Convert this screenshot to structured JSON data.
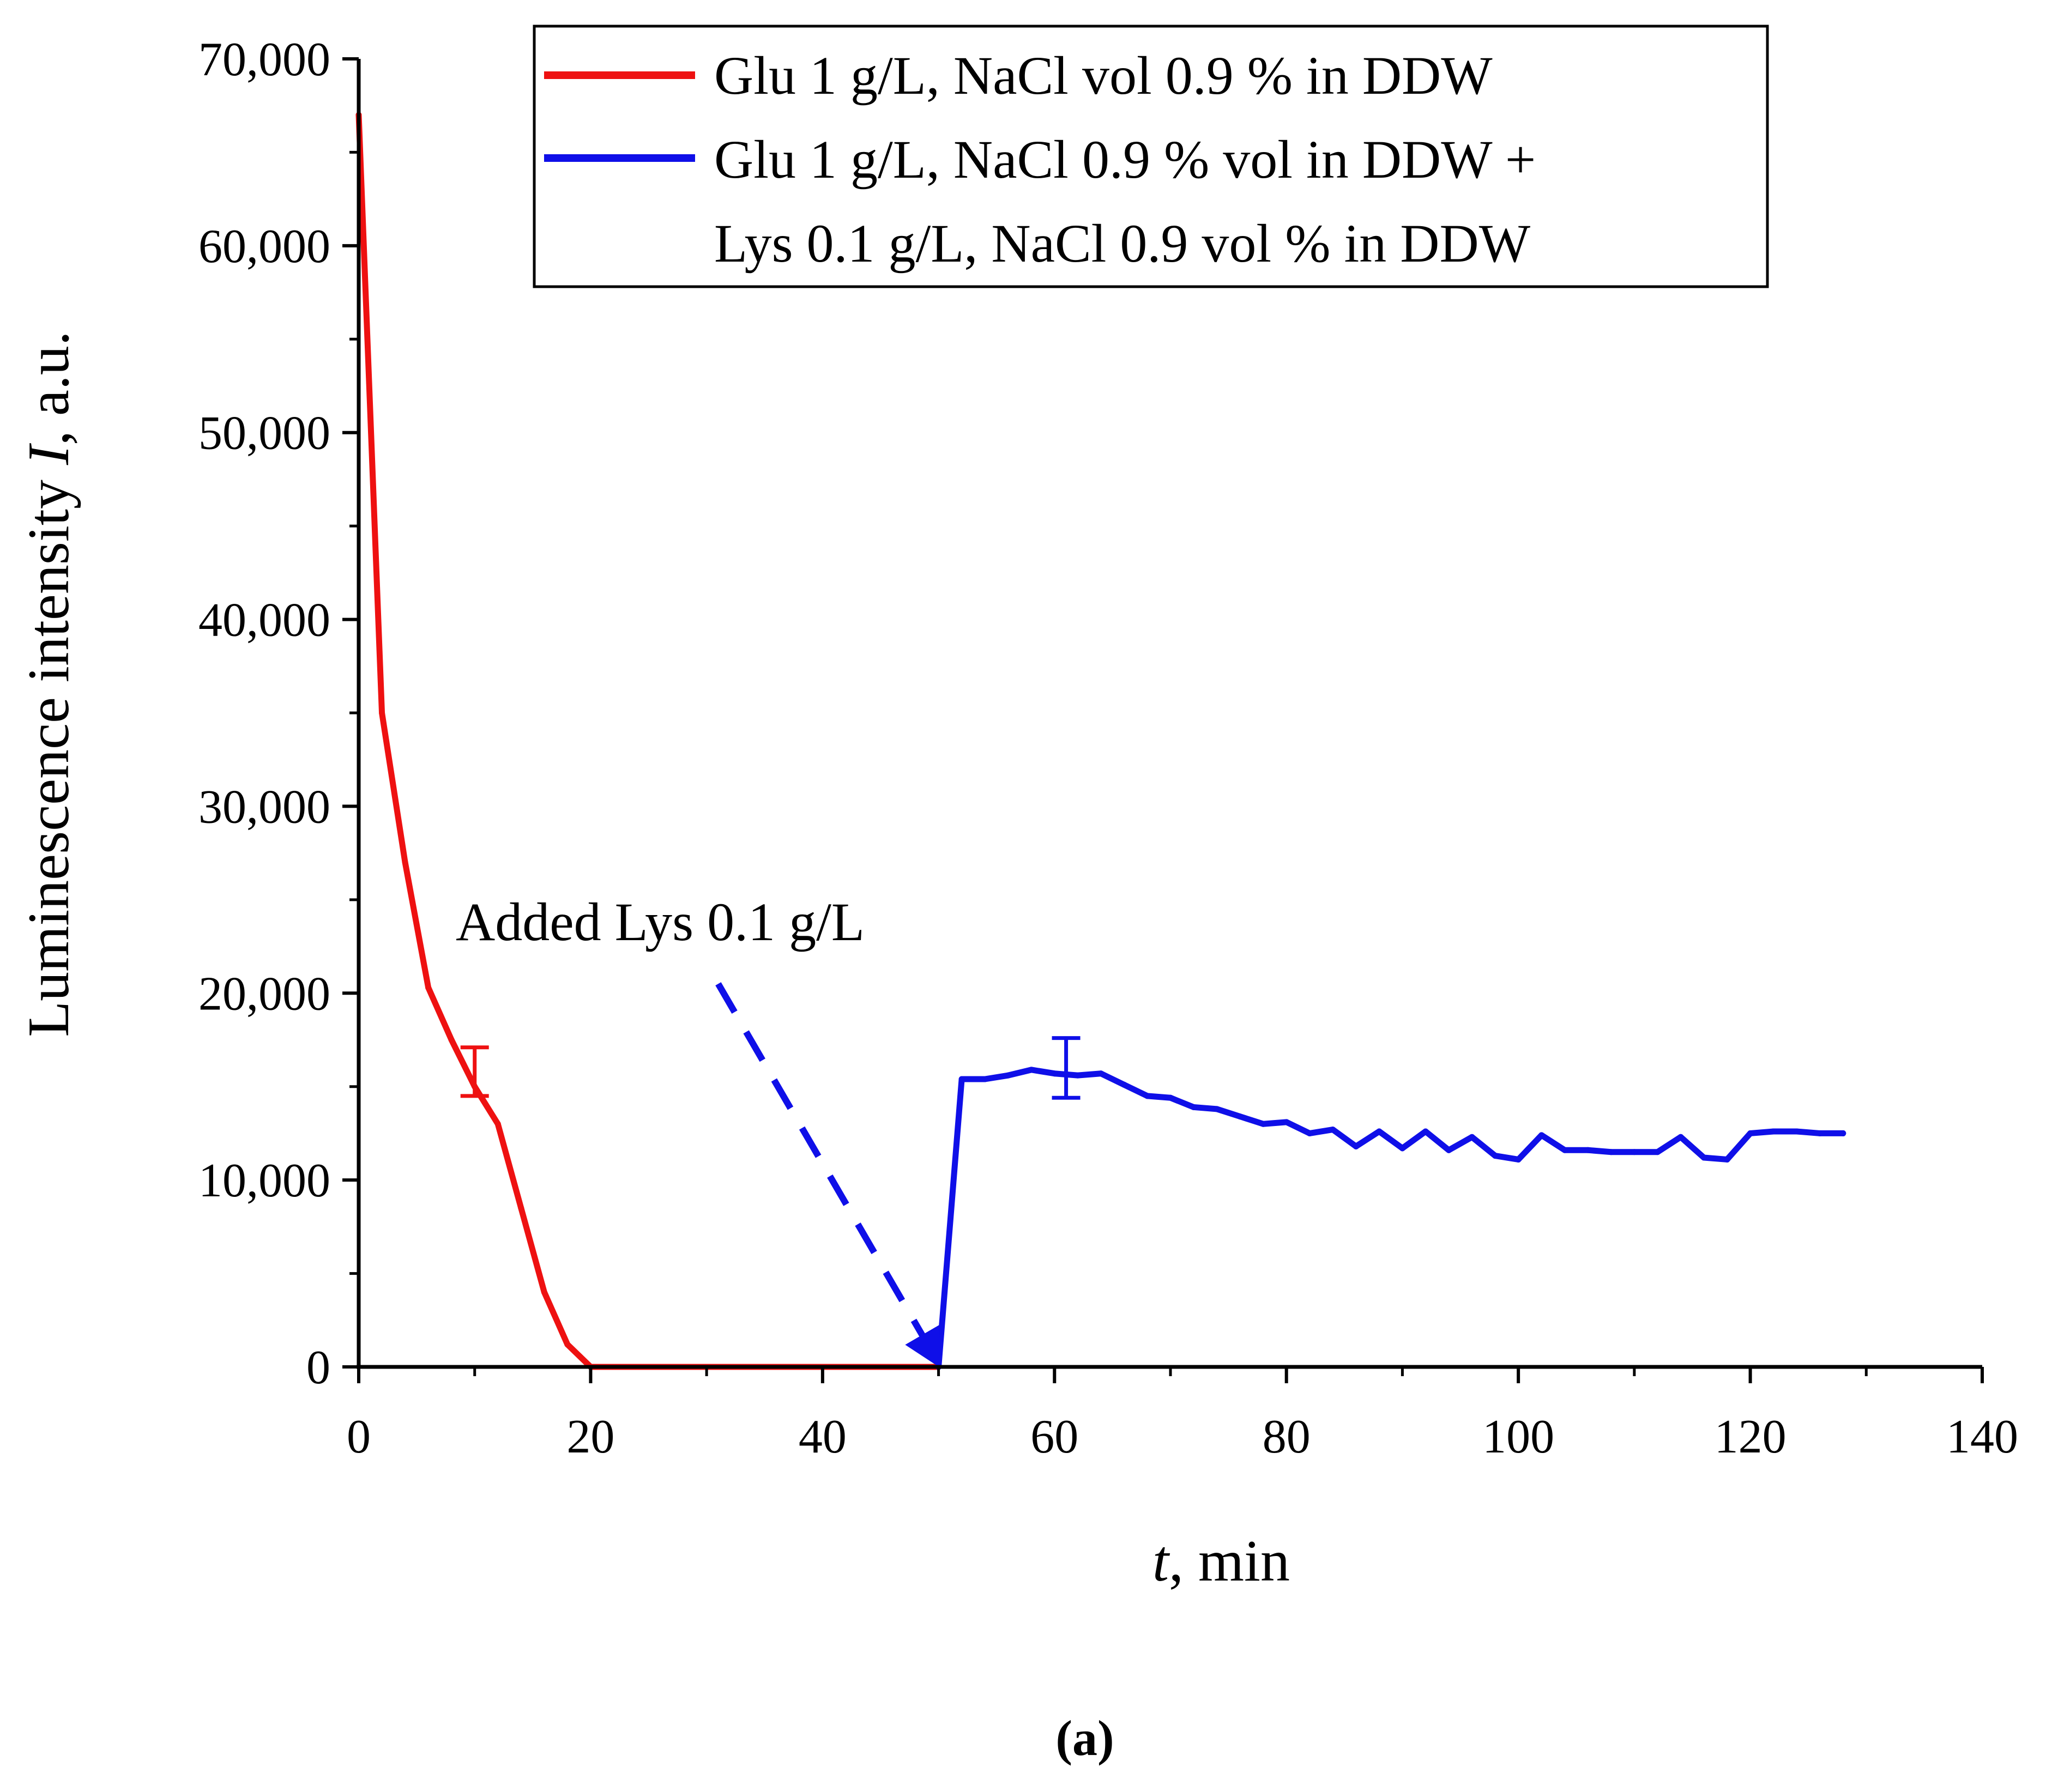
{
  "chart_data": {
    "type": "line",
    "title": "",
    "xlabel_var": "t",
    "xlabel_rest": ", min",
    "ylabel_pre": "Luminescence intensity ",
    "ylabel_var": "I",
    "ylabel_post": ", a.u.",
    "xlim": [
      0,
      140
    ],
    "ylim": [
      0,
      70000
    ],
    "x_ticks": [
      0,
      20,
      40,
      60,
      80,
      100,
      120,
      140
    ],
    "y_ticks": [
      0,
      10000,
      20000,
      30000,
      40000,
      50000,
      60000,
      70000
    ],
    "x_tick_labels": [
      "0",
      "20",
      "40",
      "60",
      "80",
      "100",
      "120",
      "140"
    ],
    "y_tick_labels": [
      "0",
      "10,000",
      "20,000",
      "30,000",
      "40,000",
      "50,000",
      "60,000",
      "70,000"
    ],
    "grid": false,
    "legend_position": "top-right",
    "series": [
      {
        "name": "Glu 1 g/L, NaCl vol 0.9 %  in DDW",
        "color": "#ee1111",
        "x": [
          0,
          2,
          4,
          6,
          8,
          10,
          12,
          14,
          16,
          18,
          20,
          22,
          24,
          26,
          28,
          30,
          32,
          34,
          36,
          38,
          40,
          42,
          44,
          46,
          48,
          50
        ],
        "y": [
          67000,
          35000,
          27000,
          20300,
          17500,
          15000,
          13000,
          8500,
          4000,
          1200,
          0,
          0,
          0,
          0,
          0,
          0,
          0,
          0,
          0,
          0,
          0,
          0,
          0,
          0,
          0,
          0
        ],
        "error_bar": {
          "x": 10,
          "y": 15800,
          "err": 1300
        }
      },
      {
        "name": "Glu 1 g/L, NaCl 0.9 % vol in DDW +",
        "name_line2": "Lys 0.1 g/L, NaCl 0.9 vol %  in DDW",
        "color": "#0f0fe8",
        "x": [
          50,
          52,
          54,
          56,
          58,
          60,
          62,
          64,
          66,
          68,
          70,
          72,
          74,
          76,
          78,
          80,
          82,
          84,
          86,
          88,
          90,
          92,
          94,
          96,
          98,
          100,
          102,
          104,
          106,
          108,
          110,
          112,
          114,
          116,
          118,
          120,
          122,
          124,
          126,
          128
        ],
        "y": [
          0,
          15400,
          15400,
          15600,
          15900,
          15700,
          15600,
          15700,
          15100,
          14500,
          14400,
          13900,
          13800,
          13400,
          13000,
          13100,
          12500,
          12700,
          11800,
          12600,
          11700,
          12600,
          11600,
          12300,
          11300,
          11100,
          12400,
          11600,
          11600,
          11500,
          11500,
          11500,
          12300,
          11200,
          11100,
          12500,
          12600,
          12600,
          12500,
          12500
        ],
        "error_bar": {
          "x": 61,
          "y": 16000,
          "err": 1600
        }
      }
    ],
    "annotations": [
      {
        "text": "Added Lys 0.1 g/L",
        "arrow_from": [
          31,
          20500
        ],
        "arrow_to": [
          50,
          200
        ],
        "arrow_color": "#0f0fe8"
      }
    ]
  },
  "panel_label": "(a)"
}
